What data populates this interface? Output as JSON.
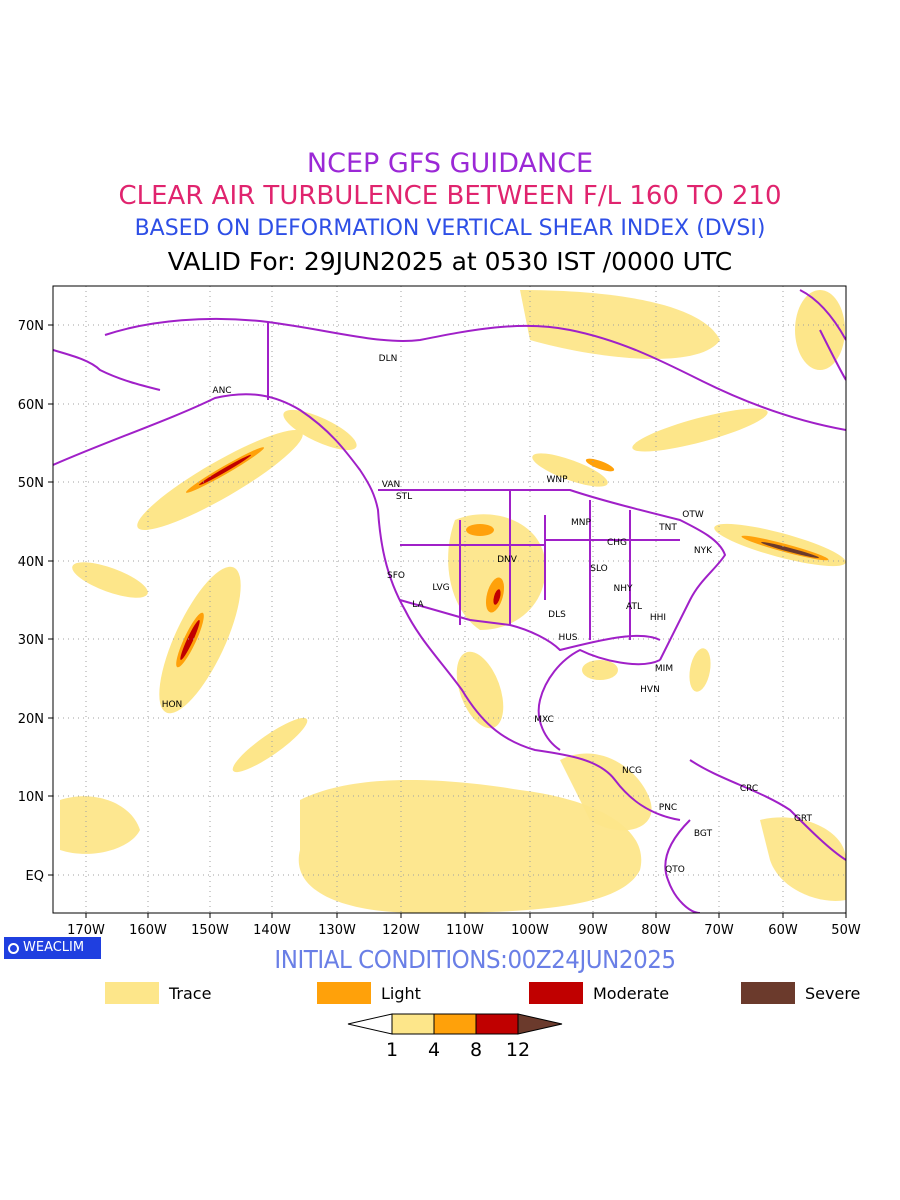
{
  "titles": {
    "line1": "NCEP GFS GUIDANCE",
    "line2": "CLEAR AIR TURBULENCE BETWEEN F/L 160 TO 210",
    "line3": "BASED ON DEFORMATION VERTICAL SHEAR INDEX (DVSI)",
    "line4": "VALID For: 29JUN2025 at 0530 IST /0000 UTC"
  },
  "colors": {
    "title1": "#9b28d6",
    "title2": "#e0246e",
    "title3": "#2e4fe6",
    "initial": "#6a7fe6",
    "boundary": "#a020c8",
    "trace": "#fde68a",
    "light": "#ffa10a",
    "moderate": "#c00000",
    "severe": "#6b3a2c"
  },
  "map": {
    "lon_labels": [
      "170W",
      "160W",
      "150W",
      "140W",
      "130W",
      "120W",
      "110W",
      "100W",
      "90W",
      "80W",
      "70W",
      "60W",
      "50W"
    ],
    "lat_labels": [
      "70N",
      "60N",
      "50N",
      "40N",
      "30N",
      "20N",
      "10N",
      "EQ"
    ],
    "stations": [
      "ANC",
      "DLN",
      "VAN",
      "STL",
      "WNP",
      "OTW",
      "TNT",
      "MNP",
      "CHG",
      "NYK",
      "DNV",
      "SLO",
      "SFO",
      "LVG",
      "NHY",
      "LA",
      "ATL",
      "DLS",
      "HHI",
      "HUS",
      "MIM",
      "HON",
      "HVN",
      "MXC",
      "NCG",
      "CRC",
      "GRT",
      "PNC",
      "BGT",
      "QTO"
    ]
  },
  "badge": {
    "text": "WEACLIM",
    "icon": "circle-logo-icon"
  },
  "initial_conditions": "INITIAL CONDITIONS:00Z24JUN2025",
  "legend": [
    {
      "label": "Trace",
      "color": "#fde68a"
    },
    {
      "label": "Light",
      "color": "#ffa10a"
    },
    {
      "label": "Moderate",
      "color": "#c00000"
    },
    {
      "label": "Severe",
      "color": "#6b3a2c"
    }
  ],
  "colorbar": {
    "ticks": [
      "1",
      "4",
      "8",
      "12"
    ]
  }
}
